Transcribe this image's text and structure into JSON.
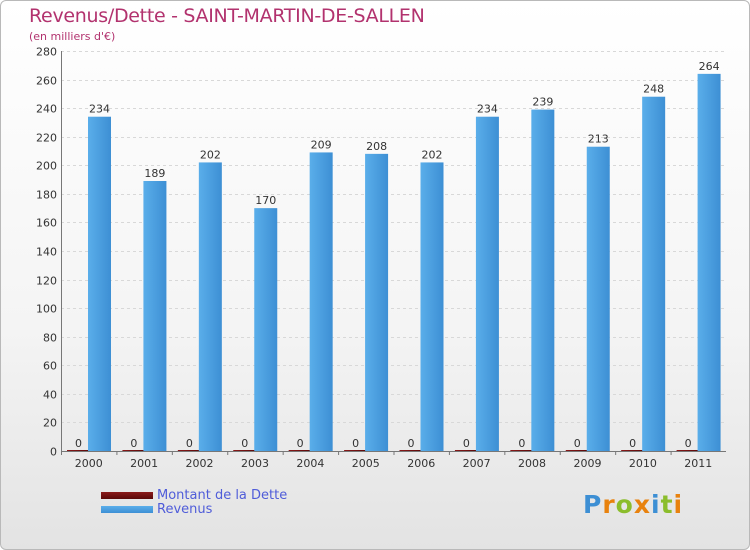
{
  "header": {
    "title": "Revenus/Dette - SAINT-MARTIN-DE-SALLEN",
    "subtitle": "(en milliers d'€)"
  },
  "colors": {
    "title": "#b2326e",
    "revenus": "#4a9fe0",
    "dette": "#6b0b0b",
    "legend_text": "#4f5cd9"
  },
  "legend": {
    "items": [
      {
        "label": "Montant de la Dette",
        "color": "#6b0b0b"
      },
      {
        "label": "Revenus",
        "color": "#4a9fe0"
      }
    ]
  },
  "logo": {
    "text": "Proxiti"
  },
  "chart_data": {
    "type": "bar",
    "title": "Revenus/Dette - SAINT-MARTIN-DE-SALLEN",
    "subtitle": "(en milliers d'€)",
    "xlabel": "",
    "ylabel": "",
    "categories": [
      "2000",
      "2001",
      "2002",
      "2003",
      "2004",
      "2005",
      "2006",
      "2007",
      "2008",
      "2009",
      "2010",
      "2011"
    ],
    "series": [
      {
        "name": "Montant de la Dette",
        "color": "#6b0b0b",
        "values": [
          0,
          0,
          0,
          0,
          0,
          0,
          0,
          0,
          0,
          0,
          0,
          0
        ]
      },
      {
        "name": "Revenus",
        "color": "#4a9fe0",
        "values": [
          234,
          189,
          202,
          170,
          209,
          208,
          202,
          234,
          239,
          213,
          248,
          264
        ]
      }
    ],
    "ylim": [
      0,
      280
    ],
    "yticks": [
      0,
      20,
      40,
      60,
      80,
      100,
      120,
      140,
      160,
      180,
      200,
      220,
      240,
      260,
      280
    ],
    "grid": true,
    "legend_position": "bottom-left"
  }
}
